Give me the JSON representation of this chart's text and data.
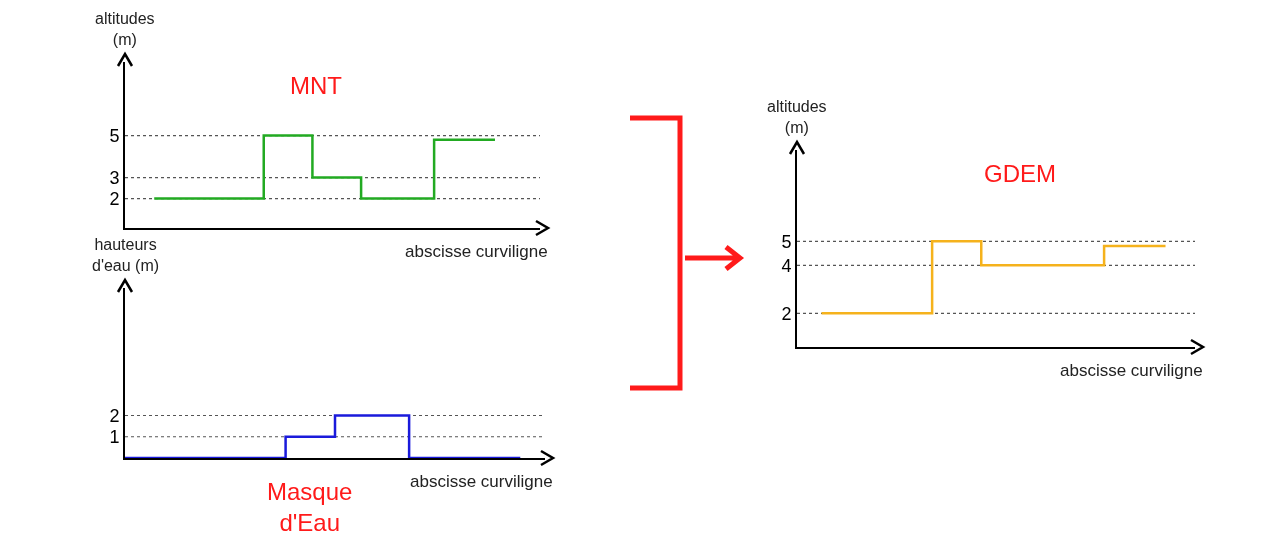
{
  "chart_data": [
    {
      "type": "step",
      "title": "MNT",
      "xlabel": "abscisse curviligne",
      "ylabel": "altitudes\n(m)",
      "categories": [
        null,
        null,
        null,
        null,
        null,
        null,
        null,
        null,
        null,
        null,
        null,
        null,
        null,
        null,
        null
      ],
      "series": [
        {
          "color": "#22aa22",
          "values": [
            2,
            2,
            2,
            2,
            2,
            5,
            5,
            3,
            3,
            2,
            2,
            2,
            4.8,
            4.8,
            4.8
          ]
        }
      ],
      "ylim": [
        0.6,
        8.5
      ],
      "yticks": [
        2,
        3,
        5
      ],
      "tick_labels": "y",
      "grid": false,
      "ref_lines": [
        {
          "axis": "y",
          "value": 2,
          "color": "#555555",
          "line_style": "dotted"
        },
        {
          "axis": "y",
          "value": 3,
          "color": "#555555",
          "line_style": "dotted"
        },
        {
          "axis": "y",
          "value": 5,
          "color": "#555555",
          "line_style": "dotted"
        }
      ]
    },
    {
      "type": "step",
      "title": "Masque\nd'Eau",
      "xlabel": "abscisse curviligne",
      "ylabel": "hauteurs\nd'eau (m)",
      "categories": [
        null,
        null,
        null,
        null,
        null,
        null,
        null,
        null,
        null,
        null,
        null,
        null,
        null,
        null,
        null,
        null,
        null
      ],
      "series": [
        {
          "color": "#1a1adb",
          "values": [
            0,
            0,
            0,
            0,
            0,
            0,
            0,
            1,
            1,
            2,
            2,
            2,
            0,
            0,
            0,
            0,
            0
          ]
        }
      ],
      "ylim": [
        0,
        8
      ],
      "yticks": [
        1,
        2
      ],
      "tick_labels": "y",
      "grid": false,
      "ref_lines": [
        {
          "axis": "y",
          "value": 1,
          "color": "#555555",
          "line_style": "dotted"
        },
        {
          "axis": "y",
          "value": 2,
          "color": "#555555",
          "line_style": "dotted"
        }
      ]
    },
    {
      "type": "step",
      "title": "GDEM",
      "xlabel": "abscisse curviligne",
      "ylabel": "altitudes\n(m)",
      "categories": [
        null,
        null,
        null,
        null,
        null,
        null,
        null,
        null,
        null,
        null,
        null,
        null,
        null,
        null,
        null
      ],
      "series": [
        {
          "color": "#f5b21c",
          "values": [
            2,
            2,
            2,
            2,
            2,
            5,
            5,
            4,
            4,
            4,
            4,
            4,
            4.8,
            4.8,
            4.8
          ]
        }
      ],
      "ylim": [
        0.6,
        8.8
      ],
      "yticks": [
        2,
        4,
        5
      ],
      "tick_labels": "y",
      "grid": false,
      "ref_lines": [
        {
          "axis": "y",
          "value": 2,
          "color": "#555555",
          "line_style": "dotted"
        },
        {
          "axis": "y",
          "value": 4,
          "color": "#555555",
          "line_style": "dotted"
        },
        {
          "axis": "y",
          "value": 5,
          "color": "#555555",
          "line_style": "dotted"
        }
      ]
    }
  ]
}
